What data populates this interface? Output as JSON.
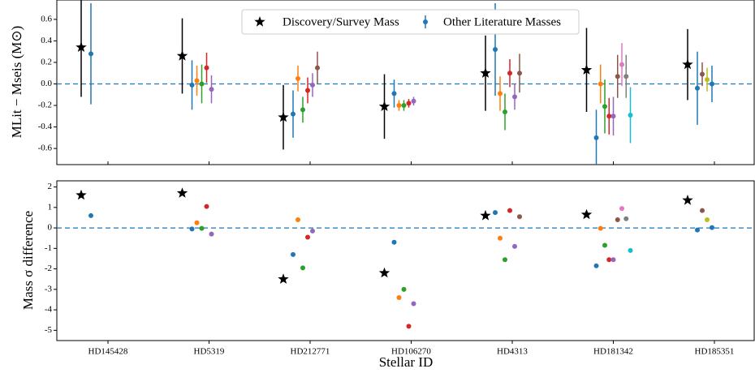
{
  "chart_data": [
    {
      "type": "errorbar",
      "ylabel": "MLit − Mseis (M⊙)",
      "ylim": [
        -0.75,
        0.78
      ],
      "yticks": [
        -0.6,
        -0.4,
        -0.2,
        {
          "value": 0,
          "label": "0.0"
        },
        0.2,
        0.4,
        0.6
      ],
      "hline": 0,
      "legend": "upper center",
      "series": [
        {
          "name": "Discovery/Survey Mass",
          "color": "#000000",
          "values": [
            0.34,
            0.26,
            -0.31,
            -0.21,
            0.1,
            0.13,
            0.18
          ],
          "errors": [
            0.46,
            0.35,
            0.3,
            0.3,
            0.35,
            0.39,
            0.33
          ]
        },
        {
          "name": "Other Literature Masses",
          "color": "#1f77b4",
          "values": [
            [
              0.28
            ],
            [
              -0.01,
              0.03,
              0.0,
              0.15,
              -0.05
            ],
            [
              -0.28,
              0.05,
              -0.24,
              -0.06,
              -0.01,
              0.15
            ],
            [
              -0.09,
              -0.2,
              -0.2,
              -0.18,
              -0.16
            ],
            [
              0.32,
              -0.09,
              -0.26,
              0.1,
              -0.12,
              0.1
            ],
            [
              -0.5,
              0.0,
              -0.21,
              -0.3,
              -0.3,
              0.07,
              0.18,
              0.07,
              -0.29
            ],
            [
              -0.04,
              0.09,
              0.04,
              0.0
            ]
          ],
          "errors": [
            [
              0.47
            ],
            [
              0.23,
              0.14,
              0.18,
              0.14,
              0.13
            ],
            [
              0.22,
              0.12,
              0.12,
              0.12,
              0.11,
              0.15
            ],
            [
              0.13,
              0.05,
              0.05,
              0.04,
              0.04
            ],
            [
              0.43,
              0.16,
              0.17,
              0.13,
              0.12,
              0.18
            ],
            [
              0.26,
              0.18,
              0.25,
              0.17,
              0.18,
              0.2,
              0.2,
              0.2,
              0.26
            ],
            [
              0.34,
              0.11,
              0.11,
              0.17
            ]
          ],
          "colors": [
            [
              "#1f77b4"
            ],
            [
              "#1f77b4",
              "#ff7f0e",
              "#2ca02c",
              "#d62728",
              "#9467bd"
            ],
            [
              "#1f77b4",
              "#ff7f0e",
              "#2ca02c",
              "#d62728",
              "#9467bd",
              "#8c564b"
            ],
            [
              "#1f77b4",
              "#ff7f0e",
              "#2ca02c",
              "#d62728",
              "#9467bd"
            ],
            [
              "#1f77b4",
              "#ff7f0e",
              "#2ca02c",
              "#d62728",
              "#9467bd",
              "#8c564b"
            ],
            [
              "#1f77b4",
              "#ff7f0e",
              "#2ca02c",
              "#d62728",
              "#9467bd",
              "#8c564b",
              "#e377c2",
              "#7f7f7f",
              "#17becf"
            ],
            [
              "#1f77b4",
              "#8c564b",
              "#bcbd22",
              "#1f77b4"
            ]
          ]
        }
      ]
    },
    {
      "type": "scatter",
      "xlabel": "Stellar ID",
      "ylabel": "Mass σ difference",
      "categories": [
        "HD145428",
        "HD5319",
        "HD212771",
        "HD106270",
        "HD4313",
        "HD181342",
        "HD185351"
      ],
      "ylim": [
        -5.5,
        2.3
      ],
      "yticks": [
        -5,
        -4,
        -3,
        -2,
        -1,
        0,
        1,
        2
      ],
      "hline": 0,
      "series": [
        {
          "color": "#000000",
          "values": [
            1.6,
            1.7,
            -2.5,
            -2.2,
            0.6,
            0.65,
            1.35
          ]
        },
        {
          "values": [
            [
              0.6
            ],
            [
              -0.05,
              0.25,
              -0.02,
              1.05,
              -0.3
            ],
            [
              -1.3,
              0.4,
              -1.95,
              -0.45,
              -0.15,
              null
            ],
            [
              -0.7,
              -3.4,
              -3.0,
              -4.8,
              -3.7
            ],
            [
              0.75,
              -0.5,
              -1.55,
              0.85,
              -0.9,
              0.55
            ],
            [
              -1.85,
              -0.02,
              -0.85,
              -1.55,
              -1.55,
              0.4,
              0.95,
              0.45,
              -1.1
            ],
            [
              -0.1,
              0.85,
              0.4,
              0.02
            ]
          ]
        }
      ]
    }
  ]
}
